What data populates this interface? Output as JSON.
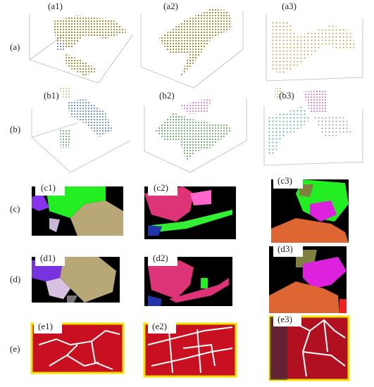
{
  "row_labels": [
    "(a)",
    "(b)",
    "(c)",
    "(d)",
    "(e)"
  ],
  "panels": [
    [
      "(a1)",
      "(a2)",
      "(a3)"
    ],
    [
      "(b1)",
      "(b2)",
      "(b3)"
    ],
    [
      "(c1)",
      "(c2)",
      "(c3)"
    ],
    [
      "(d1)",
      "(d2)",
      "(d3)"
    ],
    [
      "(e1)",
      "(e2)",
      "(e3)"
    ]
  ]
}
